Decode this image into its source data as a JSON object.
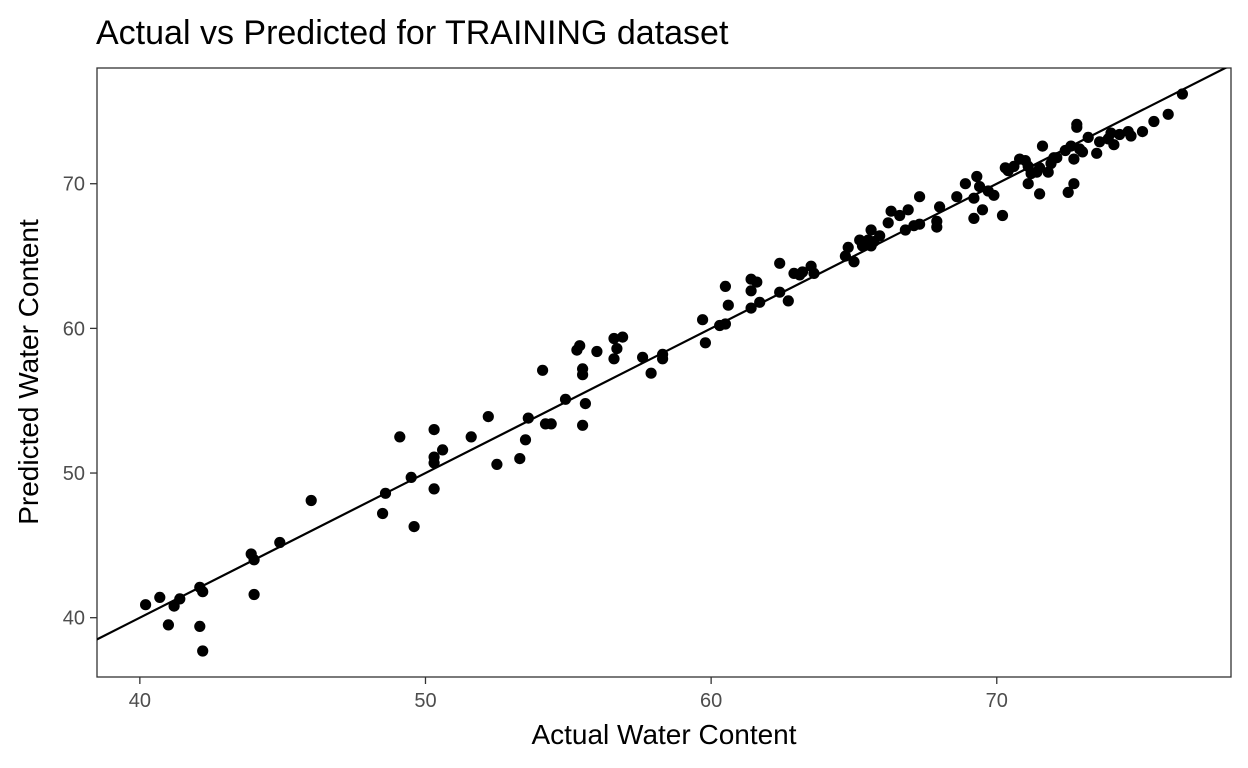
{
  "chart_data": {
    "type": "scatter",
    "title": "Actual vs Predicted for TRAINING dataset",
    "xlabel": "Actual Water Content",
    "ylabel": "Predicted Water Content",
    "xlim": [
      38.5,
      78.2
    ],
    "ylim": [
      35.9,
      78.0
    ],
    "x_ticks": [
      40,
      50,
      60,
      70
    ],
    "y_ticks": [
      40,
      50,
      60,
      70
    ],
    "grid": false,
    "reference_line": {
      "slope": 1,
      "intercept": 0
    },
    "point_color": "#000000",
    "points": [
      [
        40.2,
        40.9
      ],
      [
        40.7,
        41.4
      ],
      [
        41.0,
        39.5
      ],
      [
        41.2,
        40.8
      ],
      [
        41.4,
        41.3
      ],
      [
        42.1,
        42.1
      ],
      [
        42.1,
        39.4
      ],
      [
        42.2,
        41.8
      ],
      [
        42.2,
        37.7
      ],
      [
        43.9,
        44.4
      ],
      [
        44.0,
        44.0
      ],
      [
        44.0,
        41.6
      ],
      [
        44.9,
        45.2
      ],
      [
        46.0,
        48.1
      ],
      [
        48.5,
        47.2
      ],
      [
        48.6,
        48.6
      ],
      [
        49.1,
        52.5
      ],
      [
        49.5,
        49.7
      ],
      [
        49.6,
        46.3
      ],
      [
        50.3,
        53.0
      ],
      [
        50.3,
        51.1
      ],
      [
        50.3,
        50.7
      ],
      [
        50.3,
        48.9
      ],
      [
        50.6,
        51.6
      ],
      [
        51.6,
        52.5
      ],
      [
        52.2,
        53.9
      ],
      [
        52.5,
        50.6
      ],
      [
        53.3,
        51.0
      ],
      [
        53.5,
        52.3
      ],
      [
        53.6,
        53.8
      ],
      [
        54.1,
        57.1
      ],
      [
        54.2,
        53.4
      ],
      [
        54.4,
        53.4
      ],
      [
        54.9,
        55.1
      ],
      [
        55.3,
        58.5
      ],
      [
        55.4,
        58.8
      ],
      [
        55.5,
        57.2
      ],
      [
        55.5,
        56.8
      ],
      [
        55.5,
        53.3
      ],
      [
        55.6,
        54.8
      ],
      [
        56.0,
        58.4
      ],
      [
        56.6,
        57.9
      ],
      [
        56.6,
        59.3
      ],
      [
        56.7,
        58.6
      ],
      [
        56.9,
        59.4
      ],
      [
        57.6,
        58.0
      ],
      [
        57.9,
        56.9
      ],
      [
        58.3,
        58.2
      ],
      [
        58.3,
        57.9
      ],
      [
        59.7,
        60.6
      ],
      [
        59.8,
        59.0
      ],
      [
        60.3,
        60.2
      ],
      [
        60.5,
        60.3
      ],
      [
        60.5,
        62.9
      ],
      [
        60.6,
        61.6
      ],
      [
        61.4,
        61.4
      ],
      [
        61.4,
        62.6
      ],
      [
        61.4,
        63.4
      ],
      [
        61.6,
        63.2
      ],
      [
        61.7,
        61.8
      ],
      [
        62.4,
        64.5
      ],
      [
        62.4,
        62.5
      ],
      [
        62.7,
        61.9
      ],
      [
        62.9,
        63.8
      ],
      [
        63.1,
        63.7
      ],
      [
        63.2,
        63.9
      ],
      [
        63.5,
        64.3
      ],
      [
        63.6,
        63.8
      ],
      [
        64.7,
        65.0
      ],
      [
        64.8,
        65.6
      ],
      [
        65.0,
        64.6
      ],
      [
        65.2,
        66.1
      ],
      [
        65.3,
        65.7
      ],
      [
        65.5,
        66.1
      ],
      [
        65.6,
        65.7
      ],
      [
        65.6,
        66.8
      ],
      [
        65.7,
        66.0
      ],
      [
        65.9,
        66.4
      ],
      [
        66.2,
        67.3
      ],
      [
        66.3,
        68.1
      ],
      [
        66.6,
        67.8
      ],
      [
        66.8,
        66.8
      ],
      [
        66.9,
        68.2
      ],
      [
        67.1,
        67.1
      ],
      [
        67.3,
        69.1
      ],
      [
        67.3,
        67.2
      ],
      [
        67.9,
        67.0
      ],
      [
        67.9,
        67.4
      ],
      [
        68.0,
        68.4
      ],
      [
        68.6,
        69.1
      ],
      [
        68.9,
        70.0
      ],
      [
        69.2,
        67.6
      ],
      [
        69.2,
        69.0
      ],
      [
        69.3,
        70.5
      ],
      [
        69.4,
        69.8
      ],
      [
        69.5,
        68.2
      ],
      [
        69.7,
        69.5
      ],
      [
        69.9,
        69.2
      ],
      [
        70.2,
        67.8
      ],
      [
        70.3,
        71.1
      ],
      [
        70.4,
        70.9
      ],
      [
        70.6,
        71.2
      ],
      [
        70.8,
        71.7
      ],
      [
        71.0,
        71.6
      ],
      [
        71.1,
        70.0
      ],
      [
        71.1,
        71.2
      ],
      [
        71.2,
        70.7
      ],
      [
        71.4,
        70.8
      ],
      [
        71.5,
        69.3
      ],
      [
        71.5,
        71.1
      ],
      [
        71.6,
        72.6
      ],
      [
        71.8,
        70.8
      ],
      [
        71.9,
        71.4
      ],
      [
        72.0,
        71.8
      ],
      [
        72.1,
        71.8
      ],
      [
        72.4,
        72.3
      ],
      [
        72.5,
        69.4
      ],
      [
        72.6,
        72.6
      ],
      [
        72.7,
        71.7
      ],
      [
        72.7,
        70.0
      ],
      [
        72.8,
        73.9
      ],
      [
        72.8,
        74.1
      ],
      [
        72.9,
        72.4
      ],
      [
        73.0,
        72.2
      ],
      [
        73.2,
        73.2
      ],
      [
        73.5,
        72.1
      ],
      [
        73.6,
        72.9
      ],
      [
        73.9,
        73.1
      ],
      [
        74.0,
        73.5
      ],
      [
        74.1,
        72.7
      ],
      [
        74.3,
        73.4
      ],
      [
        74.6,
        73.6
      ],
      [
        74.7,
        73.3
      ],
      [
        75.1,
        73.6
      ],
      [
        75.5,
        74.3
      ],
      [
        76.0,
        74.8
      ],
      [
        76.5,
        76.2
      ]
    ]
  }
}
